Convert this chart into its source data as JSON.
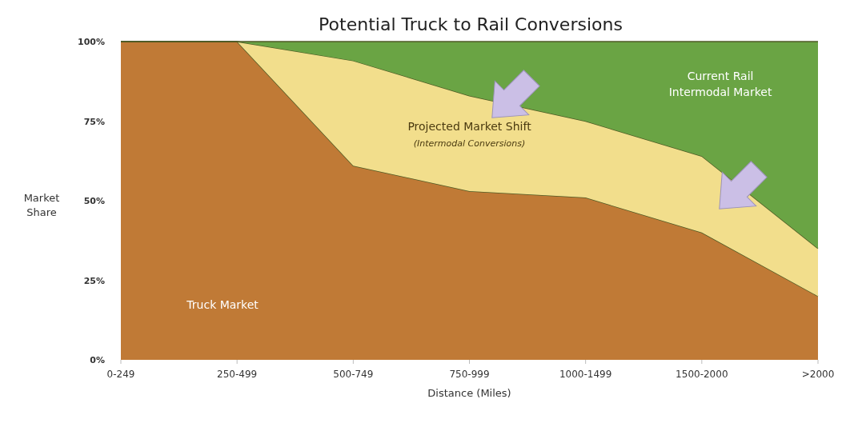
{
  "chart_data": {
    "type": "area",
    "stacked": true,
    "title": "Potential Truck to Rail Conversions",
    "xlabel": "Distance (Miles)",
    "ylabel": "Market Share",
    "categories": [
      "0-249",
      "250-499",
      "500-749",
      "750-999",
      "1000-1499",
      "1500-2000",
      ">2000"
    ],
    "series": [
      {
        "name": "Truck Market",
        "color": "#c07a36",
        "values": [
          100,
          100,
          61,
          53,
          51,
          40,
          20
        ]
      },
      {
        "name": "Projected Market Shift",
        "color": "#f2de8c",
        "values": [
          0,
          0,
          33,
          30,
          24,
          24,
          15
        ]
      },
      {
        "name": "Current Rail Intermodal Market",
        "color": "#6aa444",
        "values": [
          0,
          0,
          6,
          17,
          25,
          36,
          65
        ]
      }
    ],
    "annotations": [
      "(Intermodal Conversions)"
    ],
    "ylim": [
      0,
      100
    ],
    "yticks": [
      {
        "value": 0,
        "label": "0%"
      },
      {
        "value": 25,
        "label": "25%"
      },
      {
        "value": 50,
        "label": "50%"
      },
      {
        "value": 75,
        "label": "75%"
      },
      {
        "value": 100,
        "label": "100%"
      }
    ],
    "grid": false
  }
}
